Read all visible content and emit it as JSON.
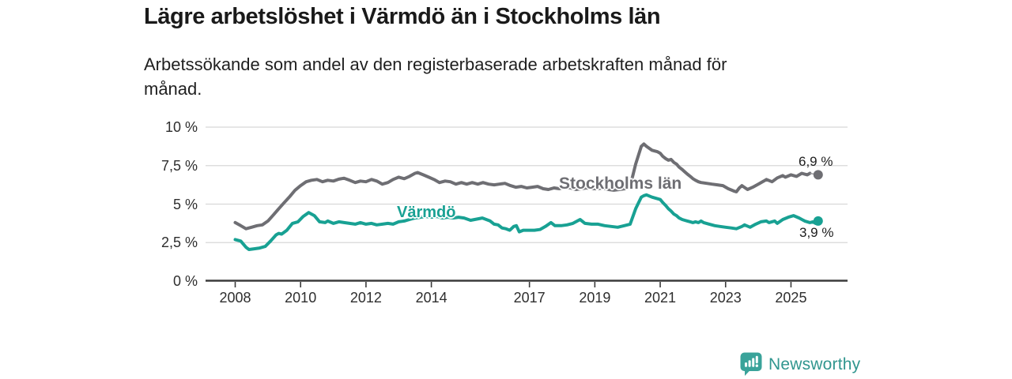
{
  "header": {
    "title": "Lägre arbetslöshet i Värmdö än i Stockholms län",
    "subtitle_lines": [
      "Arbetssökande som andel av den registerbaserade arbetskraften månad för",
      "månad."
    ]
  },
  "footer": {
    "brand": "Newsworthy"
  },
  "colors": {
    "stockholm_line": "#6E6E73",
    "varmdo_line": "#18A193",
    "gridline": "#D8D8D8",
    "axis": "#3B3B3B",
    "text": "#1A1A1A",
    "brand_teal": "#3AA39A"
  },
  "chart_data": {
    "type": "line",
    "unit": "%",
    "grid": true,
    "legend_position": "inline-on-lines",
    "y_axis": {
      "labels": [
        "0 %",
        "2,5 %",
        "5 %",
        "7,5 %",
        "10 %"
      ],
      "values": [
        0,
        2.5,
        5,
        7.5,
        10
      ],
      "range": [
        0,
        10
      ]
    },
    "x_axis": {
      "labels": [
        "2008",
        "2010",
        "2012",
        "2014",
        "2017",
        "2019",
        "2021",
        "2023",
        "2025"
      ],
      "values": [
        2008,
        2010,
        2012,
        2014,
        2017,
        2019,
        2021,
        2023,
        2025
      ],
      "range": [
        2008,
        2025.83
      ]
    },
    "series": [
      {
        "name": "Stockholms län",
        "color": "#6E6E73",
        "end_label": "6,9 %",
        "last_value": 6.9,
        "leader": true,
        "points": [
          [
            2008.0,
            3.8
          ],
          [
            2008.17,
            3.6
          ],
          [
            2008.33,
            3.4
          ],
          [
            2008.5,
            3.5
          ],
          [
            2008.67,
            3.6
          ],
          [
            2008.83,
            3.65
          ],
          [
            2009.0,
            3.9
          ],
          [
            2009.17,
            4.3
          ],
          [
            2009.33,
            4.7
          ],
          [
            2009.5,
            5.1
          ],
          [
            2009.67,
            5.5
          ],
          [
            2009.83,
            5.9
          ],
          [
            2010.0,
            6.2
          ],
          [
            2010.17,
            6.45
          ],
          [
            2010.33,
            6.55
          ],
          [
            2010.5,
            6.6
          ],
          [
            2010.67,
            6.45
          ],
          [
            2010.83,
            6.55
          ],
          [
            2011.0,
            6.5
          ],
          [
            2011.17,
            6.62
          ],
          [
            2011.33,
            6.68
          ],
          [
            2011.5,
            6.55
          ],
          [
            2011.67,
            6.4
          ],
          [
            2011.83,
            6.5
          ],
          [
            2012.0,
            6.45
          ],
          [
            2012.17,
            6.6
          ],
          [
            2012.33,
            6.5
          ],
          [
            2012.5,
            6.3
          ],
          [
            2012.67,
            6.4
          ],
          [
            2012.83,
            6.6
          ],
          [
            2013.0,
            6.75
          ],
          [
            2013.17,
            6.65
          ],
          [
            2013.33,
            6.8
          ],
          [
            2013.5,
            7.0
          ],
          [
            2013.58,
            7.05
          ],
          [
            2013.75,
            6.9
          ],
          [
            2013.92,
            6.75
          ],
          [
            2014.08,
            6.6
          ],
          [
            2014.25,
            6.4
          ],
          [
            2014.42,
            6.5
          ],
          [
            2014.58,
            6.45
          ],
          [
            2014.75,
            6.3
          ],
          [
            2014.92,
            6.4
          ],
          [
            2015.08,
            6.3
          ],
          [
            2015.25,
            6.4
          ],
          [
            2015.42,
            6.3
          ],
          [
            2015.58,
            6.4
          ],
          [
            2015.75,
            6.3
          ],
          [
            2015.92,
            6.25
          ],
          [
            2016.08,
            6.3
          ],
          [
            2016.25,
            6.35
          ],
          [
            2016.42,
            6.2
          ],
          [
            2016.58,
            6.1
          ],
          [
            2016.75,
            6.15
          ],
          [
            2016.92,
            6.05
          ],
          [
            2017.08,
            6.1
          ],
          [
            2017.25,
            6.15
          ],
          [
            2017.42,
            6.0
          ],
          [
            2017.58,
            5.95
          ],
          [
            2017.75,
            6.05
          ],
          [
            2017.92,
            6.0
          ],
          [
            2018.08,
            6.1
          ],
          [
            2018.25,
            6.05
          ],
          [
            2018.42,
            5.95
          ],
          [
            2018.58,
            6.0
          ],
          [
            2018.75,
            6.05
          ],
          [
            2018.92,
            6.0
          ],
          [
            2019.08,
            6.0
          ],
          [
            2019.25,
            6.05
          ],
          [
            2019.42,
            5.95
          ],
          [
            2019.58,
            5.9
          ],
          [
            2019.75,
            5.95
          ],
          [
            2019.92,
            6.0
          ],
          [
            2020.08,
            6.15
          ],
          [
            2020.25,
            7.6
          ],
          [
            2020.42,
            8.75
          ],
          [
            2020.5,
            8.9
          ],
          [
            2020.58,
            8.75
          ],
          [
            2020.75,
            8.5
          ],
          [
            2020.92,
            8.4
          ],
          [
            2021.0,
            8.3
          ],
          [
            2021.08,
            8.1
          ],
          [
            2021.17,
            7.95
          ],
          [
            2021.25,
            7.85
          ],
          [
            2021.33,
            7.9
          ],
          [
            2021.42,
            7.7
          ],
          [
            2021.5,
            7.6
          ],
          [
            2021.58,
            7.4
          ],
          [
            2021.67,
            7.25
          ],
          [
            2021.75,
            7.1
          ],
          [
            2021.83,
            6.95
          ],
          [
            2021.92,
            6.8
          ],
          [
            2022.0,
            6.65
          ],
          [
            2022.08,
            6.55
          ],
          [
            2022.17,
            6.45
          ],
          [
            2022.25,
            6.4
          ],
          [
            2022.42,
            6.35
          ],
          [
            2022.58,
            6.3
          ],
          [
            2022.75,
            6.25
          ],
          [
            2022.92,
            6.2
          ],
          [
            2023.08,
            6.0
          ],
          [
            2023.25,
            5.85
          ],
          [
            2023.33,
            5.8
          ],
          [
            2023.42,
            6.05
          ],
          [
            2023.5,
            6.2
          ],
          [
            2023.67,
            5.95
          ],
          [
            2023.83,
            6.1
          ],
          [
            2024.0,
            6.3
          ],
          [
            2024.17,
            6.5
          ],
          [
            2024.25,
            6.6
          ],
          [
            2024.42,
            6.45
          ],
          [
            2024.58,
            6.7
          ],
          [
            2024.75,
            6.85
          ],
          [
            2024.83,
            6.75
          ],
          [
            2025.0,
            6.9
          ],
          [
            2025.17,
            6.8
          ],
          [
            2025.33,
            7.0
          ],
          [
            2025.5,
            6.9
          ],
          [
            2025.58,
            7.0
          ],
          [
            2025.83,
            6.9
          ]
        ]
      },
      {
        "name": "Värmdö",
        "color": "#18A193",
        "end_label": "3,9 %",
        "last_value": 3.9,
        "leader": false,
        "points": [
          [
            2008.0,
            2.7
          ],
          [
            2008.17,
            2.6
          ],
          [
            2008.33,
            2.2
          ],
          [
            2008.42,
            2.05
          ],
          [
            2008.58,
            2.1
          ],
          [
            2008.75,
            2.15
          ],
          [
            2008.92,
            2.25
          ],
          [
            2009.08,
            2.6
          ],
          [
            2009.25,
            3.0
          ],
          [
            2009.33,
            3.1
          ],
          [
            2009.42,
            3.05
          ],
          [
            2009.58,
            3.3
          ],
          [
            2009.75,
            3.75
          ],
          [
            2009.92,
            3.85
          ],
          [
            2010.08,
            4.2
          ],
          [
            2010.25,
            4.45
          ],
          [
            2010.42,
            4.25
          ],
          [
            2010.58,
            3.85
          ],
          [
            2010.75,
            3.8
          ],
          [
            2010.83,
            3.9
          ],
          [
            2011.0,
            3.75
          ],
          [
            2011.17,
            3.85
          ],
          [
            2011.33,
            3.8
          ],
          [
            2011.5,
            3.75
          ],
          [
            2011.67,
            3.7
          ],
          [
            2011.83,
            3.8
          ],
          [
            2012.0,
            3.7
          ],
          [
            2012.17,
            3.75
          ],
          [
            2012.33,
            3.65
          ],
          [
            2012.5,
            3.7
          ],
          [
            2012.67,
            3.75
          ],
          [
            2012.83,
            3.7
          ],
          [
            2013.0,
            3.85
          ],
          [
            2013.17,
            3.9
          ],
          [
            2013.33,
            4.0
          ],
          [
            2013.5,
            4.1
          ],
          [
            2013.67,
            4.15
          ],
          [
            2013.83,
            4.2
          ],
          [
            2014.0,
            4.15
          ],
          [
            2014.17,
            4.2
          ],
          [
            2014.33,
            4.1
          ],
          [
            2014.5,
            4.15
          ],
          [
            2014.67,
            4.1
          ],
          [
            2014.83,
            4.15
          ],
          [
            2015.0,
            4.1
          ],
          [
            2015.2,
            3.95
          ],
          [
            2015.56,
            4.1
          ],
          [
            2015.8,
            3.9
          ],
          [
            2015.92,
            3.7
          ],
          [
            2016.04,
            3.65
          ],
          [
            2016.16,
            3.45
          ],
          [
            2016.28,
            3.4
          ],
          [
            2016.4,
            3.3
          ],
          [
            2016.52,
            3.55
          ],
          [
            2016.6,
            3.6
          ],
          [
            2016.69,
            3.2
          ],
          [
            2016.81,
            3.3
          ],
          [
            2016.94,
            3.3
          ],
          [
            2017.15,
            3.3
          ],
          [
            2017.32,
            3.35
          ],
          [
            2017.49,
            3.55
          ],
          [
            2017.66,
            3.8
          ],
          [
            2017.78,
            3.6
          ],
          [
            2017.97,
            3.6
          ],
          [
            2018.15,
            3.65
          ],
          [
            2018.33,
            3.75
          ],
          [
            2018.55,
            4.0
          ],
          [
            2018.7,
            3.75
          ],
          [
            2018.9,
            3.7
          ],
          [
            2019.1,
            3.7
          ],
          [
            2019.3,
            3.6
          ],
          [
            2019.5,
            3.55
          ],
          [
            2019.7,
            3.5
          ],
          [
            2019.9,
            3.6
          ],
          [
            2020.08,
            3.7
          ],
          [
            2020.25,
            4.7
          ],
          [
            2020.42,
            5.45
          ],
          [
            2020.5,
            5.55
          ],
          [
            2020.58,
            5.6
          ],
          [
            2020.75,
            5.45
          ],
          [
            2020.92,
            5.35
          ],
          [
            2021.0,
            5.3
          ],
          [
            2021.08,
            5.1
          ],
          [
            2021.17,
            4.9
          ],
          [
            2021.25,
            4.7
          ],
          [
            2021.33,
            4.55
          ],
          [
            2021.42,
            4.35
          ],
          [
            2021.5,
            4.25
          ],
          [
            2021.58,
            4.1
          ],
          [
            2021.67,
            4.0
          ],
          [
            2021.75,
            3.95
          ],
          [
            2021.83,
            3.9
          ],
          [
            2021.92,
            3.85
          ],
          [
            2022.0,
            3.8
          ],
          [
            2022.08,
            3.85
          ],
          [
            2022.17,
            3.8
          ],
          [
            2022.25,
            3.9
          ],
          [
            2022.33,
            3.8
          ],
          [
            2022.5,
            3.7
          ],
          [
            2022.67,
            3.6
          ],
          [
            2022.83,
            3.55
          ],
          [
            2023.0,
            3.5
          ],
          [
            2023.17,
            3.45
          ],
          [
            2023.33,
            3.4
          ],
          [
            2023.5,
            3.55
          ],
          [
            2023.58,
            3.65
          ],
          [
            2023.75,
            3.5
          ],
          [
            2023.92,
            3.7
          ],
          [
            2024.08,
            3.85
          ],
          [
            2024.25,
            3.9
          ],
          [
            2024.33,
            3.8
          ],
          [
            2024.5,
            3.9
          ],
          [
            2024.58,
            3.75
          ],
          [
            2024.75,
            4.0
          ],
          [
            2024.92,
            4.15
          ],
          [
            2025.08,
            4.25
          ],
          [
            2025.25,
            4.1
          ],
          [
            2025.42,
            3.9
          ],
          [
            2025.58,
            3.8
          ],
          [
            2025.67,
            3.85
          ],
          [
            2025.75,
            3.75
          ],
          [
            2025.83,
            3.9
          ]
        ]
      }
    ]
  }
}
